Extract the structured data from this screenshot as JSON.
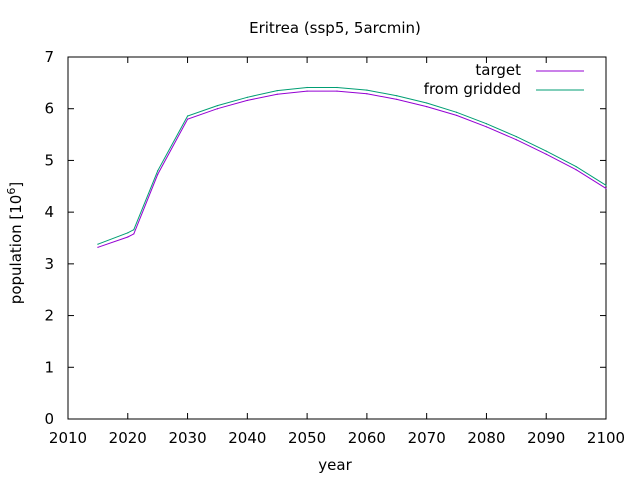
{
  "chart_data": {
    "type": "line",
    "title": "Eritrea (ssp5, 5arcmin)",
    "xlabel": "year",
    "ylabel_main": "population [10",
    "ylabel_exp": "6",
    "ylabel_close": "]",
    "xlim": [
      2010,
      2100
    ],
    "ylim": [
      0,
      7
    ],
    "xticks": [
      2010,
      2020,
      2030,
      2040,
      2050,
      2060,
      2070,
      2080,
      2090,
      2100
    ],
    "yticks": [
      0,
      1,
      2,
      3,
      4,
      5,
      6,
      7
    ],
    "grid": false,
    "legend_position": "top-right",
    "x": [
      2015,
      2020,
      2021,
      2025,
      2030,
      2035,
      2040,
      2045,
      2050,
      2055,
      2060,
      2065,
      2070,
      2075,
      2080,
      2085,
      2090,
      2095,
      2100
    ],
    "series": [
      {
        "name": "target",
        "color": "#9400d3",
        "values": [
          3.32,
          3.52,
          3.58,
          4.73,
          5.8,
          6.0,
          6.16,
          6.28,
          6.34,
          6.34,
          6.29,
          6.18,
          6.04,
          5.87,
          5.65,
          5.4,
          5.12,
          4.82,
          4.46
        ]
      },
      {
        "name": "from gridded",
        "color": "#009e73",
        "values": [
          3.38,
          3.6,
          3.66,
          4.8,
          5.86,
          6.06,
          6.22,
          6.35,
          6.41,
          6.41,
          6.36,
          6.25,
          6.11,
          5.93,
          5.71,
          5.46,
          5.18,
          4.88,
          4.52
        ]
      }
    ]
  }
}
